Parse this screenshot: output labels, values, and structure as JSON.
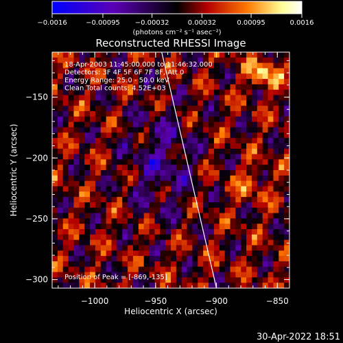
{
  "chart_data": {
    "type": "heatmap",
    "title": "Reconstructed RHESSI Image",
    "xlabel": "Heliocentric X (arcsec)",
    "ylabel": "Heliocentric Y (arcsec)",
    "xlim": [
      -1035,
      -840
    ],
    "ylim": [
      -307,
      -113
    ],
    "x_ticks": [
      -1000,
      -950,
      -900,
      -850
    ],
    "x_tick_labels": [
      "−1000",
      "−950",
      "−900",
      "−850"
    ],
    "y_ticks": [
      -150,
      -200,
      -250,
      -300
    ],
    "y_tick_labels": [
      "−150",
      "−200",
      "−250",
      "−300"
    ],
    "colorbar": {
      "range": [
        -0.0016,
        0.0016
      ],
      "ticks": [
        -0.0016,
        -0.00095,
        -0.00032,
        0.00032,
        0.00095,
        0.0016
      ],
      "tick_labels": [
        "−0.0016",
        "−0.00095",
        "−0.00032",
        "0.00032",
        "0.00095",
        "0.0016"
      ],
      "unit_label": "(photons cm⁻² s⁻¹ asec⁻²)",
      "colors": [
        "#0000ff",
        "#5a00b4",
        "#000000",
        "#b40000",
        "#ff7800",
        "#ffff96",
        "#ffffff"
      ]
    },
    "annotations": [
      "18-Apr-2003 11:45:00.000 to 11:46:32.000",
      "Detectors: 3F 4F 5F 6F 7F 8F, Att 0",
      "Energy Range: 25.0 - 50.0 keV",
      "Clean    Total counts: 4.52E+03"
    ],
    "peak_label": "Position of Peak = [-869,-135]",
    "limb_line": {
      "x": [
        -945,
        -900
      ],
      "y": [
        -113,
        -307
      ]
    },
    "grid": false,
    "timestamp": "30-Apr-2022 18:51"
  }
}
